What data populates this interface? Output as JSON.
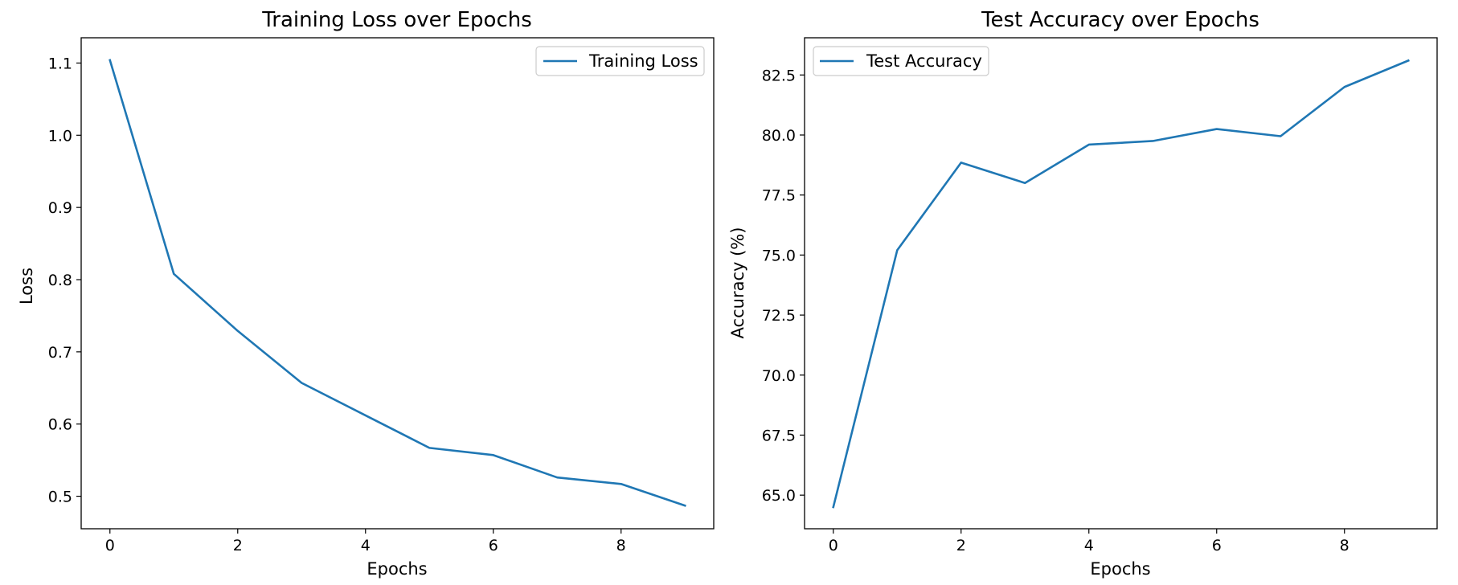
{
  "chart_data": [
    {
      "type": "line",
      "title": "Training Loss over Epochs",
      "xlabel": "Epochs",
      "ylabel": "Loss",
      "xlim": [
        -0.45,
        9.45
      ],
      "ylim": [
        0.455,
        1.135
      ],
      "xticks": [
        0,
        2,
        4,
        6,
        8
      ],
      "yticks": [
        0.5,
        0.6,
        0.7,
        0.8,
        0.9,
        1.0,
        1.1
      ],
      "ytick_decimals": 1,
      "legend_position": "upper right",
      "grid": false,
      "series": [
        {
          "name": "Training Loss",
          "color": "#1f77b4",
          "x": [
            0,
            1,
            2,
            3,
            4,
            5,
            6,
            7,
            8,
            9
          ],
          "values": [
            1.104,
            0.808,
            0.729,
            0.657,
            0.612,
            0.567,
            0.557,
            0.526,
            0.517,
            0.487
          ]
        }
      ]
    },
    {
      "type": "line",
      "title": "Test Accuracy over Epochs",
      "xlabel": "Epochs",
      "ylabel": "Accuracy (%)",
      "xlim": [
        -0.45,
        9.45
      ],
      "ylim": [
        63.6,
        84.05
      ],
      "xticks": [
        0,
        2,
        4,
        6,
        8
      ],
      "yticks": [
        65.0,
        67.5,
        70.0,
        72.5,
        75.0,
        77.5,
        80.0,
        82.5
      ],
      "ytick_decimals": 1,
      "legend_position": "upper left",
      "grid": false,
      "series": [
        {
          "name": "Test Accuracy",
          "color": "#1f77b4",
          "x": [
            0,
            1,
            2,
            3,
            4,
            5,
            6,
            7,
            8,
            9
          ],
          "values": [
            64.5,
            75.2,
            78.85,
            78.0,
            79.6,
            79.75,
            80.25,
            79.95,
            82.0,
            83.1
          ]
        }
      ]
    }
  ]
}
